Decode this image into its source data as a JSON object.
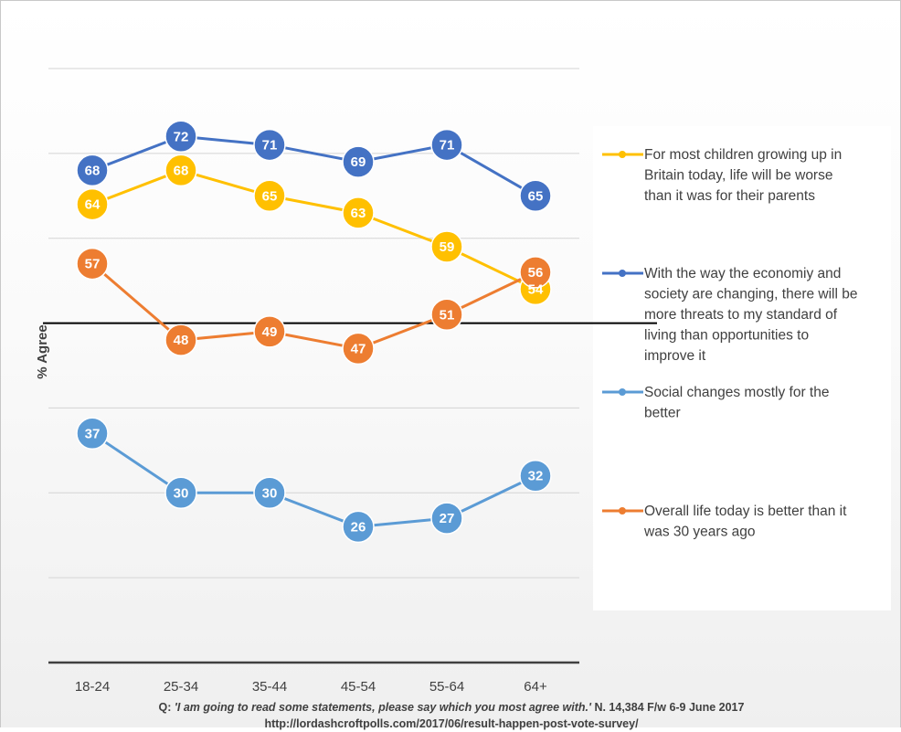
{
  "chart_data": {
    "type": "line",
    "categories": [
      "18-24",
      "25-34",
      "35-44",
      "45-54",
      "55-64",
      "64+"
    ],
    "ylabel": "% Agree",
    "ylim": [
      10,
      80
    ],
    "grid": true,
    "legend_position": "right",
    "reference_line": 50,
    "series": [
      {
        "name": "For most children growing up in Britain today, life will be worse than it was for their parents",
        "legend_lines": [
          "For most children growing up in",
          "Britain today, life will be worse",
          "than it was for their parents"
        ],
        "color": "#FFC000",
        "values": [
          64,
          68,
          65,
          63,
          59,
          54
        ]
      },
      {
        "name": "With the way the economiy and society are changing, there will be more threats to my standard of living than opportunities to improve it",
        "legend_lines": [
          "With the way the economiy and",
          "society are changing, there will be",
          "more threats to my standard of",
          "living than opportunities to",
          "improve it"
        ],
        "color": "#4472C4",
        "values": [
          68,
          72,
          71,
          69,
          71,
          65
        ]
      },
      {
        "name": "Social changes mostly for the better",
        "legend_lines": [
          "Social changes mostly for the",
          "better"
        ],
        "color": "#5B9BD5",
        "values": [
          37,
          30,
          30,
          26,
          27,
          32
        ]
      },
      {
        "name": "Overall life today is better than it was 30 years ago",
        "legend_lines": [
          "Overall life today is better than it",
          "was 30 years ago"
        ],
        "color": "#ED7D31",
        "values": [
          57,
          48,
          49,
          47,
          51,
          56
        ]
      }
    ]
  },
  "footnote": {
    "q_prefix": "Q:",
    "q_text": " 'I am going to read some statements, please say which you most agree with.'",
    "q_suffix": " N. 14,384 F/w 6-9 June 2017",
    "url": "http://lordashcroftpolls.com/2017/06/result-happen-post-vote-survey/"
  }
}
